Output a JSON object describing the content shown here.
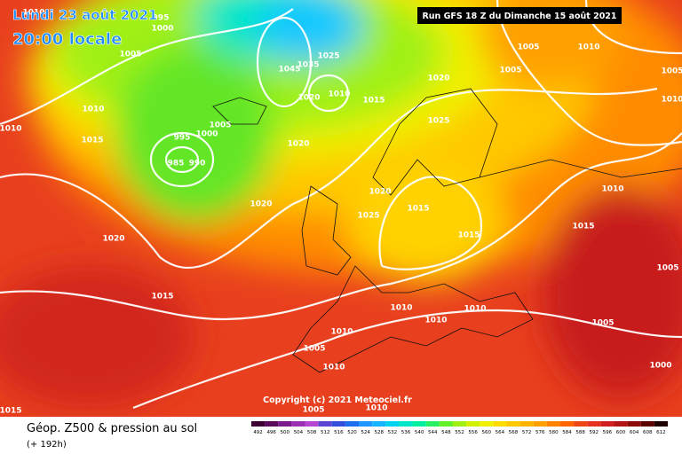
{
  "header": {
    "date": "Lundi 23 août 2021",
    "time": "20:00 locale",
    "run": "Run GFS 18 Z du Dimanche 15 août 2021"
  },
  "copyright": "Copyright (c) 2021 Meteociel.fr",
  "footer": {
    "title": "Géop. Z500 & pression au sol",
    "lead": "(+ 192h)"
  },
  "legend": {
    "values": [
      492,
      496,
      500,
      504,
      508,
      512,
      516,
      520,
      524,
      528,
      532,
      536,
      540,
      544,
      548,
      552,
      556,
      560,
      564,
      568,
      572,
      576,
      580,
      584,
      588,
      592,
      596,
      600,
      604,
      608,
      612
    ],
    "colors": [
      "#3c0032",
      "#5a0a5a",
      "#7a1a8c",
      "#9a30b4",
      "#b446d2",
      "#5a46d2",
      "#3250dc",
      "#1e6ef0",
      "#1e96ff",
      "#14b4ff",
      "#00d2f0",
      "#00e6c8",
      "#00f0a0",
      "#28f064",
      "#64f028",
      "#a0f014",
      "#d2f000",
      "#f0f000",
      "#ffdc00",
      "#ffc800",
      "#ffb400",
      "#ffa000",
      "#ff8200",
      "#ff6400",
      "#f04614",
      "#e6321e",
      "#d21e1e",
      "#b41414",
      "#8c0a0a",
      "#5a0000",
      "#1e0000"
    ]
  },
  "isobar_labels": [
    "1010",
    "995",
    "1000",
    "1005",
    "1010",
    "1010",
    "1015",
    "1005",
    "1000",
    "995",
    "985",
    "990",
    "1020",
    "1045",
    "1035",
    "1025",
    "1020",
    "1010",
    "1015",
    "1020",
    "1025",
    "1005",
    "1010",
    "1005",
    "1005",
    "1010",
    "1010",
    "1015",
    "1020",
    "1025",
    "1015",
    "1015",
    "1020",
    "1020",
    "1015",
    "1010",
    "1010",
    "1010",
    "1005",
    "1010",
    "1005",
    "1010",
    "1005",
    "1010",
    "1000",
    "1005",
    "1015"
  ]
}
